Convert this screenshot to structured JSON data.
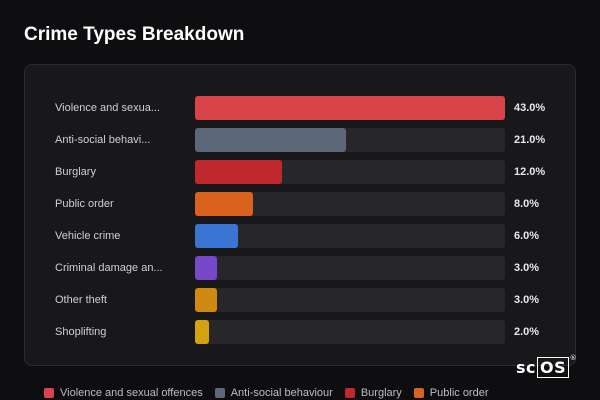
{
  "title": "Crime Types Breakdown",
  "logo_text": "scOS",
  "chart_data": {
    "type": "bar",
    "orientation": "horizontal",
    "categories": [
      "Violence and sexual offences",
      "Anti-social behaviour",
      "Burglary",
      "Public order",
      "Vehicle crime",
      "Criminal damage and arson",
      "Other theft",
      "Shoplifting"
    ],
    "display_labels": [
      "Violence and sexua...",
      "Anti-social behavi...",
      "Burglary",
      "Public order",
      "Vehicle crime",
      "Criminal damage an...",
      "Other theft",
      "Shoplifting"
    ],
    "values": [
      43.0,
      21.0,
      12.0,
      8.0,
      6.0,
      3.0,
      3.0,
      2.0
    ],
    "value_labels": [
      "43.0%",
      "21.0%",
      "12.0%",
      "8.0%",
      "6.0%",
      "3.0%",
      "3.0%",
      "2.0%"
    ],
    "unit": "%",
    "xlim": [
      0,
      43.0
    ],
    "colors": [
      "#d9444a",
      "#5c6779",
      "#c0282d",
      "#d9621d",
      "#3a75d4",
      "#7748c9",
      "#d08a14",
      "#d4a20f"
    ],
    "legend_position": "bottom",
    "grid": false
  },
  "legend": [
    {
      "label": "Violence and sexual offences",
      "color": "#d9444a"
    },
    {
      "label": "Anti-social behaviour",
      "color": "#5c6779"
    },
    {
      "label": "Burglary",
      "color": "#c0282d"
    },
    {
      "label": "Public order",
      "color": "#d9621d"
    }
  ]
}
